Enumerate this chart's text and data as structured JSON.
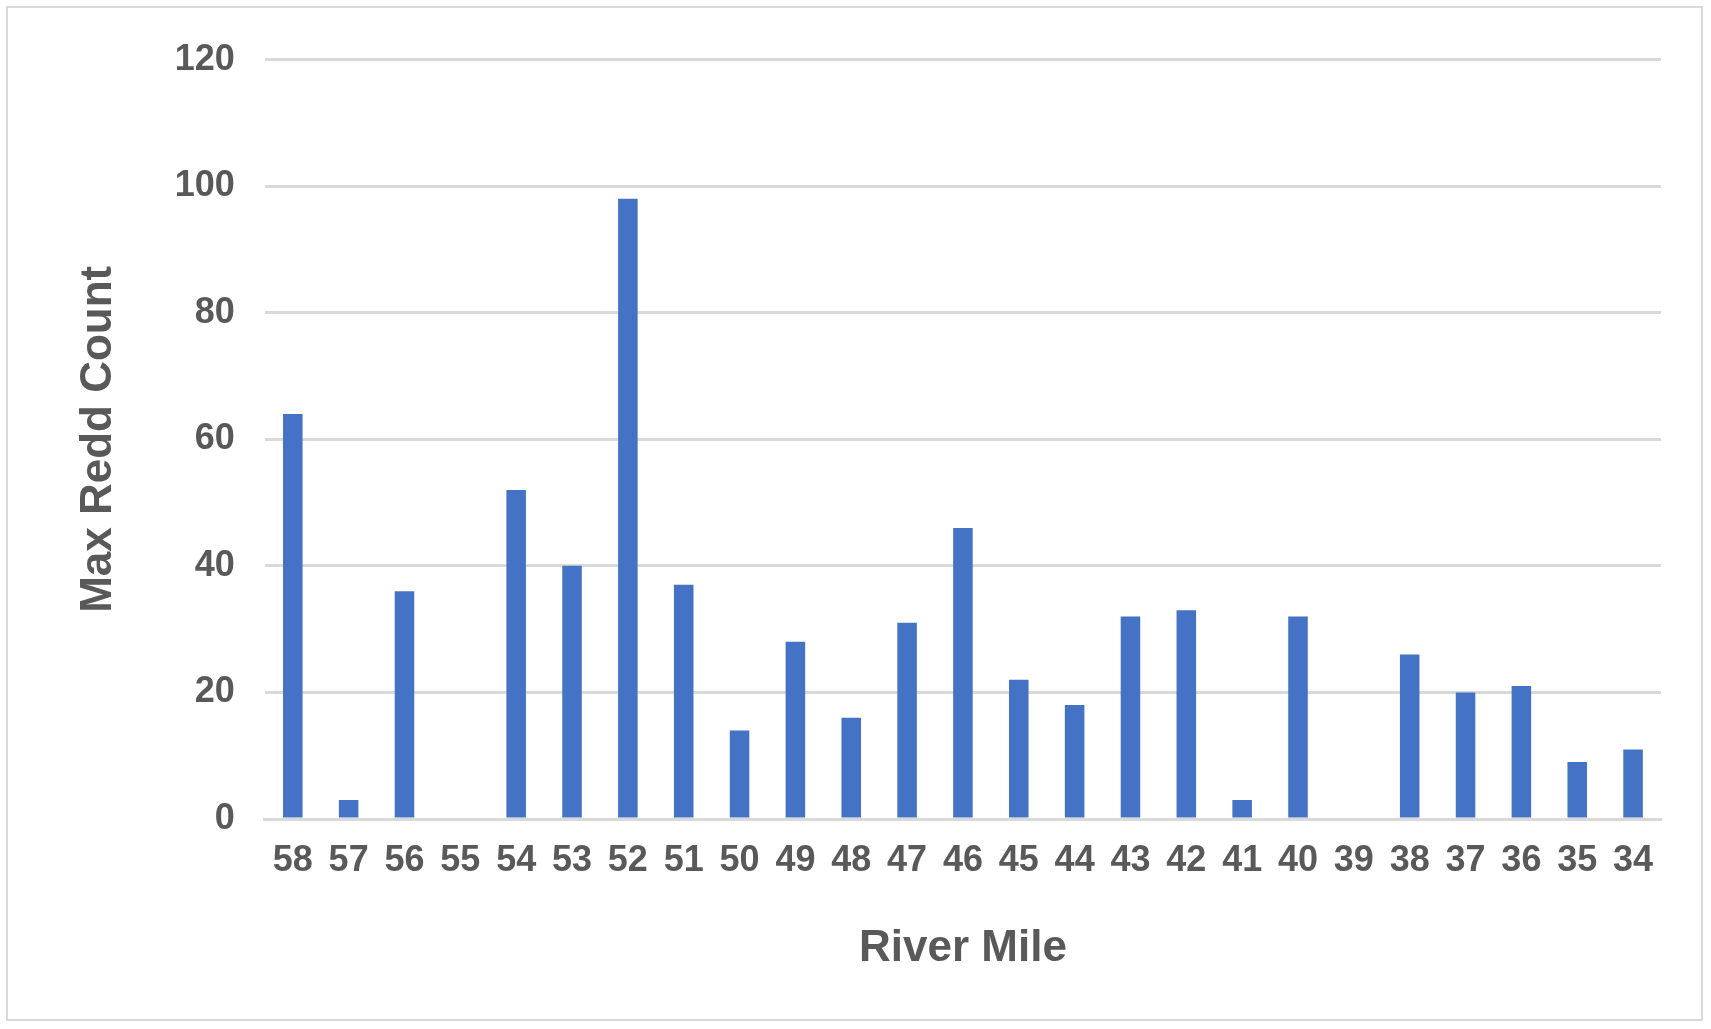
{
  "chart_data": {
    "type": "bar",
    "xlabel": "River Mile",
    "ylabel": "Max Redd Count",
    "categories": [
      "58",
      "57",
      "56",
      "55",
      "54",
      "53",
      "52",
      "51",
      "50",
      "49",
      "48",
      "47",
      "46",
      "45",
      "44",
      "43",
      "42",
      "41",
      "40",
      "39",
      "38",
      "37",
      "36",
      "35",
      "34"
    ],
    "values": [
      64,
      3,
      36,
      0,
      52,
      40,
      98,
      37,
      14,
      28,
      16,
      31,
      46,
      22,
      18,
      32,
      33,
      3,
      32,
      0,
      26,
      20,
      21,
      9,
      11
    ],
    "color": "#4472c4",
    "ylim": [
      0,
      120
    ],
    "yticks": [
      0,
      20,
      40,
      60,
      80,
      100,
      120
    ],
    "grid": "y",
    "legend": false
  }
}
